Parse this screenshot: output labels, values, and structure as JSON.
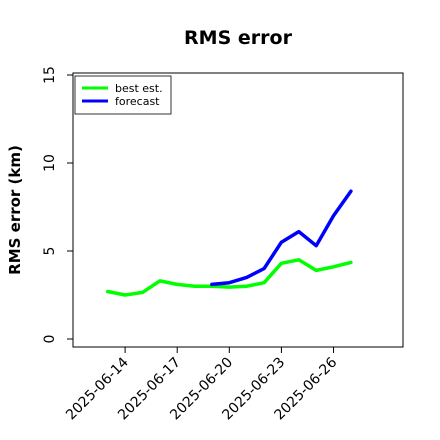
{
  "chart_data": {
    "type": "line",
    "title": "RMS error",
    "xlabel": "",
    "ylabel": "RMS error (km)",
    "x_tick_labels": [
      "2025-06-14",
      "2025-06-17",
      "2025-06-20",
      "2025-06-23",
      "2025-06-26"
    ],
    "x_range": [
      "2025-06-11",
      "2025-06-30"
    ],
    "ylim": [
      0,
      15
    ],
    "y_ticks": [
      "0",
      "5",
      "10",
      "15"
    ],
    "grid": false,
    "legend_position": "top-left",
    "series": [
      {
        "name": "best est.",
        "color": "#00ff00",
        "x": [
          "2025-06-13",
          "2025-06-14",
          "2025-06-15",
          "2025-06-16",
          "2025-06-17",
          "2025-06-18",
          "2025-06-19",
          "2025-06-20",
          "2025-06-21",
          "2025-06-22",
          "2025-06-23",
          "2025-06-24",
          "2025-06-25",
          "2025-06-26",
          "2025-06-27"
        ],
        "values": [
          2.7,
          2.5,
          2.65,
          3.3,
          3.1,
          3.0,
          3.0,
          2.95,
          3.0,
          3.2,
          4.3,
          4.5,
          3.9,
          4.1,
          4.35
        ]
      },
      {
        "name": "forecast",
        "color": "#0000ff",
        "x": [
          "2025-06-19",
          "2025-06-20",
          "2025-06-21",
          "2025-06-22",
          "2025-06-23",
          "2025-06-24",
          "2025-06-25",
          "2025-06-26",
          "2025-06-27"
        ],
        "values": [
          3.1,
          3.2,
          3.5,
          4.0,
          5.5,
          6.1,
          5.3,
          7.0,
          8.4
        ]
      }
    ]
  }
}
